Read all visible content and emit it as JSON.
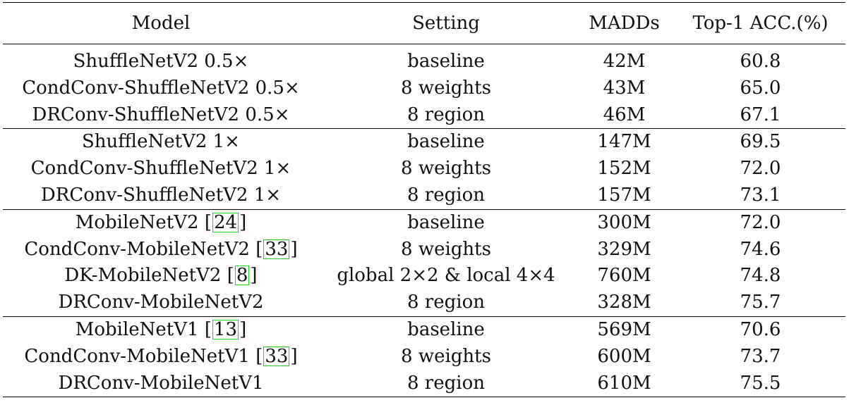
{
  "headers": [
    "Model",
    "Setting",
    "MADDs",
    "Top-1 ACC.(%)"
  ],
  "groups": [
    [
      {
        "model": "ShuffleNetV2 0.5×",
        "cite": "",
        "setting": "baseline",
        "madds": "42M",
        "acc": "60.8",
        "best": false
      },
      {
        "model": "CondConv-ShuffleNetV2 0.5×",
        "cite": "",
        "setting": "8 weights",
        "madds": "43M",
        "acc": "65.0",
        "best": false
      },
      {
        "model": "DRConv-ShuffleNetV2 0.5×",
        "cite": "",
        "setting": "8 region",
        "madds": "46M",
        "acc": "67.1",
        "best": true
      }
    ],
    [
      {
        "model": "ShuffleNetV2 1×",
        "cite": "",
        "setting": "baseline",
        "madds": "147M",
        "acc": "69.5",
        "best": false
      },
      {
        "model": "CondConv-ShuffleNetV2 1×",
        "cite": "",
        "setting": "8 weights",
        "madds": "152M",
        "acc": "72.0",
        "best": false
      },
      {
        "model": "DRConv-ShuffleNetV2 1×",
        "cite": "",
        "setting": "8 region",
        "madds": "157M",
        "acc": "73.1",
        "best": true
      }
    ],
    [
      {
        "model": "MobileNetV2",
        "cite": "24",
        "setting": "baseline",
        "madds": "300M",
        "acc": "72.0",
        "best": false
      },
      {
        "model": "CondConv-MobileNetV2",
        "cite": "33",
        "setting": "8 weights",
        "madds": "329M",
        "acc": "74.6",
        "best": false
      },
      {
        "model": "DK-MobileNetV2",
        "cite": "8",
        "setting": "global 2×2 & local 4×4",
        "madds": "760M",
        "acc": "74.8",
        "best": false
      },
      {
        "model": "DRConv-MobileNetV2",
        "cite": "",
        "setting": "8 region",
        "madds": "328M",
        "acc": "75.7",
        "best": true
      }
    ],
    [
      {
        "model": "MobileNetV1",
        "cite": "13",
        "setting": "baseline",
        "madds": "569M",
        "acc": "70.6",
        "best": false
      },
      {
        "model": "CondConv-MobileNetV1",
        "cite": "33",
        "setting": "8 weights",
        "madds": "600M",
        "acc": "73.7",
        "best": false
      },
      {
        "model": "DRConv-MobileNetV1",
        "cite": "",
        "setting": "8 region",
        "madds": "610M",
        "acc": "75.5",
        "best": true
      }
    ]
  ]
}
